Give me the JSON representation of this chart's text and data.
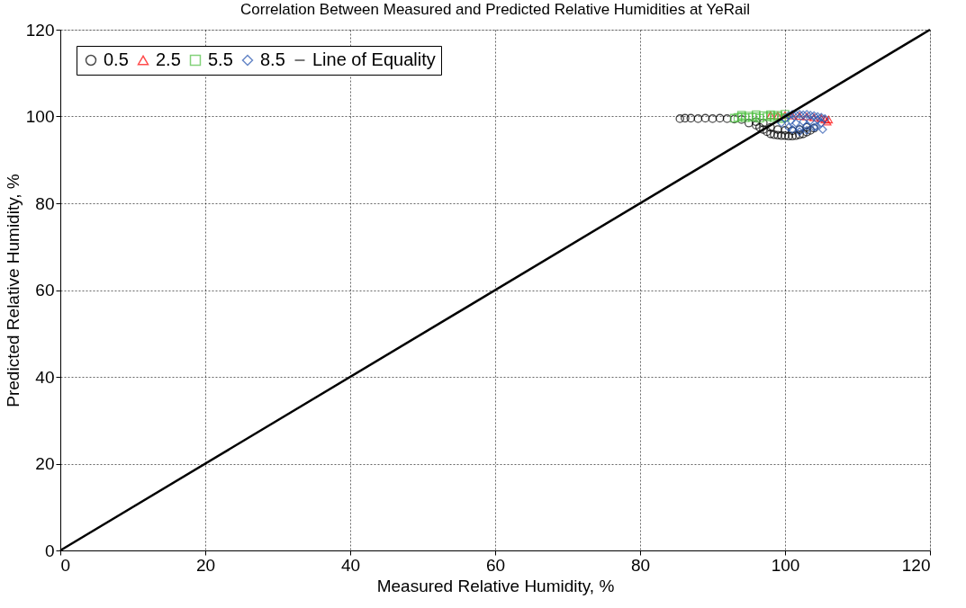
{
  "chart_data": {
    "type": "scatter",
    "title": "Correlation Between Measured and Predicted Relative Humidities at YeRail",
    "xlabel": "Measured Relative Humidity, %",
    "ylabel": "Predicted Relative Humidity, %",
    "xlim": [
      0,
      120
    ],
    "ylim": [
      0,
      120
    ],
    "xticks": [
      0,
      20,
      40,
      60,
      80,
      100,
      120
    ],
    "yticks": [
      0,
      20,
      40,
      60,
      80,
      100,
      120
    ],
    "grid": true,
    "legend": "top left",
    "series": [
      {
        "name": "0.5",
        "color": "#000000",
        "marker": "circle",
        "x": [
          85.5,
          86.2,
          87,
          88,
          89,
          90,
          91,
          92,
          93,
          94,
          95,
          96,
          96.5,
          97,
          97.5,
          98,
          98.5,
          99,
          99.5,
          100,
          100.5,
          101,
          101.5,
          102,
          102.5,
          103,
          103.5,
          104,
          98,
          99,
          100,
          101,
          102,
          103,
          97,
          96
        ],
        "values": [
          99.5,
          99.6,
          99.6,
          99.5,
          99.6,
          99.5,
          99.6,
          99.5,
          99.4,
          99.3,
          98.5,
          98,
          97.5,
          97,
          96.5,
          96,
          95.8,
          95.7,
          95.6,
          95.6,
          95.5,
          95.5,
          95.6,
          95.8,
          96,
          96.4,
          96.8,
          97.3,
          97.5,
          97,
          96.8,
          96.7,
          97,
          97.5,
          98.5,
          98.8
        ]
      },
      {
        "name": "2.5",
        "color": "#ff0000",
        "marker": "triangle",
        "x": [
          98,
          99,
          100,
          101,
          102,
          103,
          104,
          105,
          105.5,
          106,
          105.8
        ],
        "values": [
          100.3,
          100.2,
          100.3,
          100.2,
          100.1,
          100,
          99.8,
          99.6,
          99.3,
          99.3,
          98.8
        ]
      },
      {
        "name": "5.5",
        "color": "#4fc043",
        "marker": "square",
        "x": [
          93,
          93.5,
          94,
          94.5,
          95,
          95.5,
          96,
          96.5,
          97,
          97.5,
          98,
          98.5,
          99,
          99.5,
          100,
          94,
          96,
          98,
          99,
          100
        ],
        "values": [
          99.6,
          99.8,
          100,
          99.7,
          100.1,
          99.8,
          100,
          99.6,
          100.2,
          99.9,
          100.1,
          99.7,
          100,
          99.5,
          99.8,
          100.3,
          100.4,
          100.4,
          100.3,
          100.5
        ]
      },
      {
        "name": "8.5",
        "color": "#2856b0",
        "marker": "diamond",
        "x": [
          99.5,
          100,
          100.5,
          101,
          101.5,
          102,
          102.5,
          103,
          103.5,
          104,
          104.5,
          105,
          105.5,
          100.5,
          101,
          102,
          103,
          104,
          105,
          101.5,
          102.5,
          103.5,
          104.5,
          105.2,
          104.3,
          100.8,
          102,
          103
        ],
        "values": [
          98.5,
          99.5,
          100.2,
          100.5,
          100.4,
          100.5,
          100.4,
          100.5,
          100.3,
          100.2,
          100,
          99.8,
          99.5,
          97.5,
          97,
          96.5,
          96.8,
          97.5,
          98.5,
          98.5,
          98.8,
          99,
          99.2,
          97,
          97.6,
          99,
          97.2,
          97.8
        ]
      },
      {
        "name": "Line of Equality",
        "type": "line",
        "color": "#000000",
        "marker": "none",
        "line_style": "solid",
        "x": [
          0,
          120
        ],
        "values": [
          0,
          120
        ]
      }
    ]
  }
}
